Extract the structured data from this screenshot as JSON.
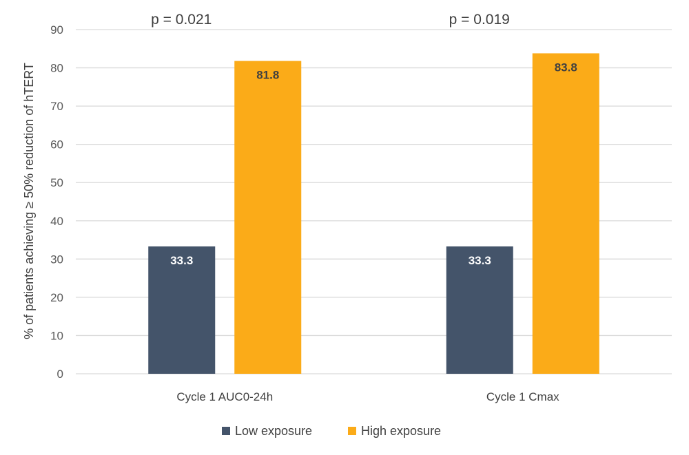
{
  "chart_data": {
    "type": "bar",
    "categories": [
      "Cycle 1 AUC0-24h",
      "Cycle 1 Cmax"
    ],
    "series": [
      {
        "name": "Low exposure",
        "values": [
          33.3,
          33.3
        ],
        "color": "#44546a",
        "label_color": "#ffffff"
      },
      {
        "name": "High exposure",
        "values": [
          81.8,
          83.8
        ],
        "color": "#fbab18",
        "label_color": "#404040"
      }
    ],
    "annotations": [
      "p = 0.021",
      "p = 0.019"
    ],
    "ylabel": "% of patients achieving ≥ 50% reduction of hTERT",
    "xlabel": "",
    "ylim": [
      0,
      90
    ],
    "yticks": [
      0,
      10,
      20,
      30,
      40,
      50,
      60,
      70,
      80,
      90
    ],
    "grid": true,
    "legend_position": "bottom"
  }
}
